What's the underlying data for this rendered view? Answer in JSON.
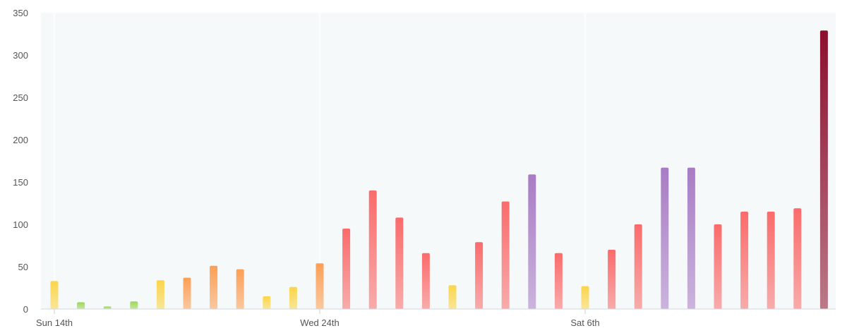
{
  "chart_data": {
    "type": "bar",
    "title": "",
    "xlabel": "",
    "ylabel": "",
    "ylim": [
      0,
      350
    ],
    "yticks": [
      0,
      50,
      100,
      150,
      200,
      250,
      300,
      350
    ],
    "grid": false,
    "x_tick_labels": [
      {
        "label": "Sun 14th",
        "at_index": 0
      },
      {
        "label": "Wed 24th",
        "at_index": 10
      },
      {
        "label": "Sat 6th",
        "at_index": 20
      }
    ],
    "values": [
      33,
      8,
      3,
      9,
      34,
      37,
      51,
      47,
      15,
      26,
      54,
      95,
      140,
      108,
      66,
      28,
      79,
      127,
      159,
      66,
      27,
      70,
      100,
      167,
      167,
      100,
      115,
      115,
      119,
      329
    ],
    "colors": {
      "green": "#9ed65a",
      "yellow": "#fbd54a",
      "orange": "#fd9f55",
      "red": "#fb6b6b",
      "purple": "#a87cc4",
      "maroon": "#8b0f2e",
      "plot_background": "#f5f9f9"
    },
    "bar_color_keys": [
      "yellow",
      "green",
      "green",
      "green",
      "yellow",
      "orange",
      "orange",
      "orange",
      "yellow",
      "yellow",
      "orange",
      "red",
      "red",
      "red",
      "red",
      "yellow",
      "red",
      "red",
      "purple",
      "red",
      "yellow",
      "red",
      "red",
      "purple",
      "purple",
      "red",
      "red",
      "red",
      "red",
      "maroon"
    ]
  }
}
